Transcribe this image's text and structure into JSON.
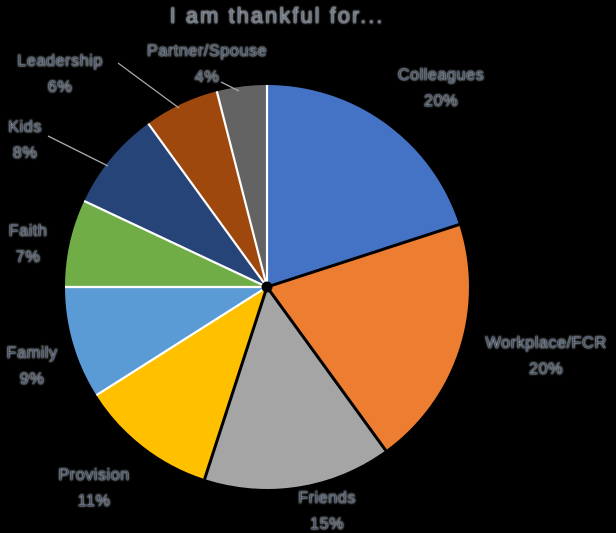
{
  "background": "#000000",
  "chart_data": {
    "type": "pie",
    "title": "I am thankful for...",
    "title_color": "#6B7686",
    "label_color": "#44546A",
    "label_halo": "#FFFFFF",
    "leader_line_color": "#A6A6A6",
    "separator_color": "#FFFFFF",
    "legend": "none",
    "start_angle_deg": 0,
    "direction": "clockwise",
    "slices": [
      {
        "label": "Colleagues",
        "pct_label": "20%",
        "value": 20,
        "color": "#4472C4"
      },
      {
        "label": "Workplace/FCR",
        "pct_label": "20%",
        "value": 20,
        "color": "#ED7D31"
      },
      {
        "label": "Friends",
        "pct_label": "15%",
        "value": 15,
        "color": "#A5A5A5"
      },
      {
        "label": "Provision",
        "pct_label": "11%",
        "value": 11,
        "color": "#FFC000"
      },
      {
        "label": "Family",
        "pct_label": "9%",
        "value": 9,
        "color": "#5B9BD5"
      },
      {
        "label": "Faith",
        "pct_label": "7%",
        "value": 7,
        "color": "#70AD47"
      },
      {
        "label": "Kids",
        "pct_label": "8%",
        "value": 8,
        "color": "#264478"
      },
      {
        "label": "Leadership",
        "pct_label": "6%",
        "value": 6,
        "color": "#9E480E"
      },
      {
        "label": "Partner/Spouse",
        "pct_label": "4%",
        "value": 4,
        "color": "#636363"
      }
    ]
  }
}
